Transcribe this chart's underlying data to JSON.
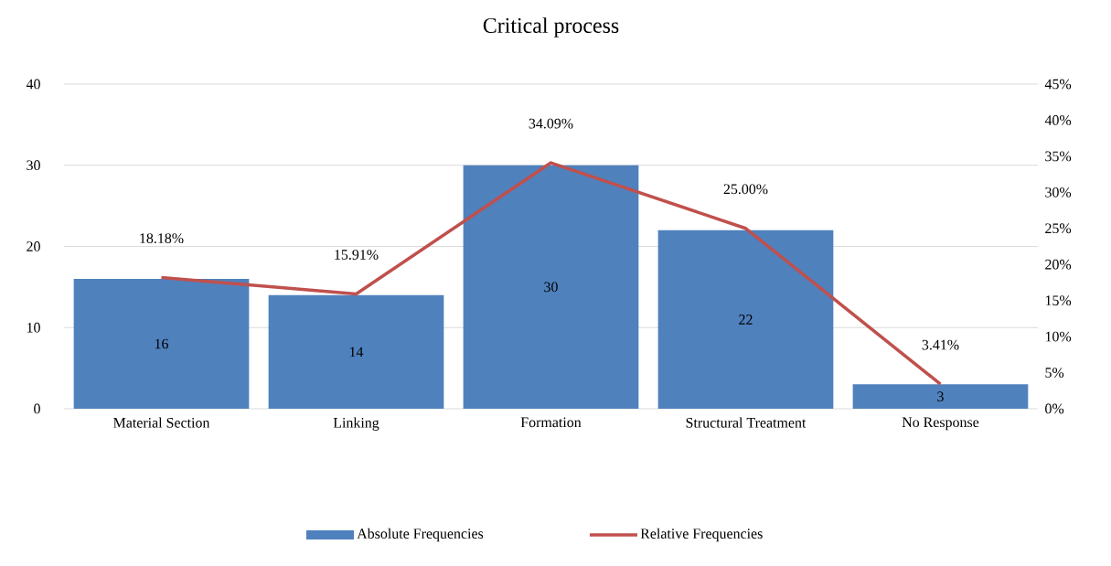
{
  "chart_data": {
    "type": "bar",
    "title": "Critical process",
    "categories": [
      "Material Section",
      "Linking",
      "Formation",
      "Structural Treatment",
      "No Response"
    ],
    "series": [
      {
        "name": "Absolute Frequencies",
        "color": "#4f81bd",
        "values": [
          16,
          14,
          30,
          22,
          3
        ],
        "value_labels": [
          "16",
          "14",
          "30",
          "22",
          "3"
        ]
      },
      {
        "name": "Relative Frequencies",
        "type": "line",
        "axis": "y2",
        "color": "#c0504d",
        "marker": "none",
        "values": [
          18.18,
          15.91,
          34.09,
          25.0,
          3.41
        ],
        "value_labels": [
          "18.18%",
          "15.91%",
          "34.09%",
          "25.00%",
          "3.41%"
        ]
      }
    ],
    "ylim": [
      0,
      40
    ],
    "yticks": [
      0,
      10,
      20,
      30,
      40
    ],
    "y2lim": [
      0,
      45
    ],
    "y2ticks": [
      {
        "value": 0,
        "label": "0%"
      },
      {
        "value": 5,
        "label": "5%"
      },
      {
        "value": 10,
        "label": "10%"
      },
      {
        "value": 15,
        "label": "15%"
      },
      {
        "value": 20,
        "label": "20%"
      },
      {
        "value": 25,
        "label": "25%"
      },
      {
        "value": 30,
        "label": "30%"
      },
      {
        "value": 35,
        "label": "35%"
      },
      {
        "value": 40,
        "label": "40%"
      },
      {
        "value": 45,
        "label": "45%"
      }
    ],
    "grid": "y",
    "legend": "bottom"
  }
}
